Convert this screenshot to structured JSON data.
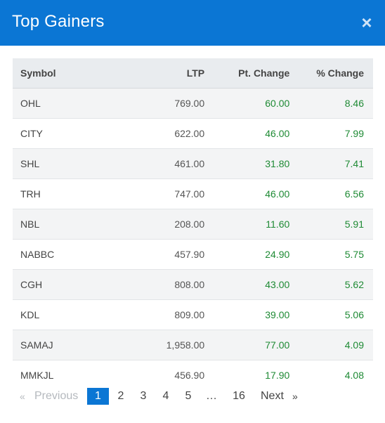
{
  "header": {
    "title": "Top Gainers",
    "close_glyph": "×"
  },
  "table": {
    "columns": [
      "Symbol",
      "LTP",
      "Pt. Change",
      "% Change"
    ],
    "rows": [
      {
        "symbol": "OHL",
        "ltp": "769.00",
        "pt": "60.00",
        "pct": "8.46"
      },
      {
        "symbol": "CITY",
        "ltp": "622.00",
        "pt": "46.00",
        "pct": "7.99"
      },
      {
        "symbol": "SHL",
        "ltp": "461.00",
        "pt": "31.80",
        "pct": "7.41"
      },
      {
        "symbol": "TRH",
        "ltp": "747.00",
        "pt": "46.00",
        "pct": "6.56"
      },
      {
        "symbol": "NBL",
        "ltp": "208.00",
        "pt": "11.60",
        "pct": "5.91"
      },
      {
        "symbol": "NABBC",
        "ltp": "457.90",
        "pt": "24.90",
        "pct": "5.75"
      },
      {
        "symbol": "CGH",
        "ltp": "808.00",
        "pt": "43.00",
        "pct": "5.62"
      },
      {
        "symbol": "KDL",
        "ltp": "809.00",
        "pt": "39.00",
        "pct": "5.06"
      },
      {
        "symbol": "SAMAJ",
        "ltp": "1,958.00",
        "pt": "77.00",
        "pct": "4.09"
      },
      {
        "symbol": "MMKJL",
        "ltp": "456.90",
        "pt": "17.90",
        "pct": "4.08"
      }
    ]
  },
  "pagination": {
    "prev_arrow": "«",
    "prev_label": "Previous",
    "pages": [
      "1",
      "2",
      "3",
      "4",
      "5"
    ],
    "ellipsis": "…",
    "last_page": "16",
    "next_label": "Next",
    "next_arrow": "»",
    "current_page": 1
  },
  "colors": {
    "header": "#0b76d4",
    "positive": "#1e8a34"
  }
}
